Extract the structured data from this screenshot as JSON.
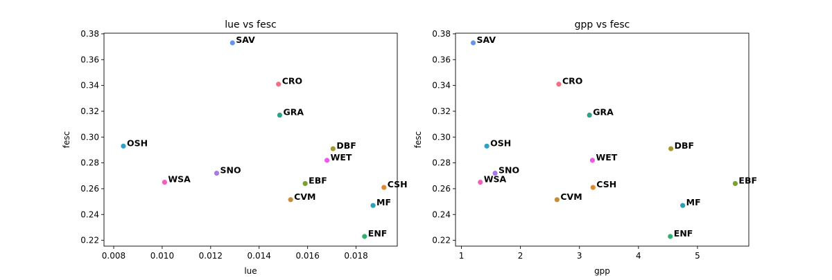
{
  "chart_data": [
    {
      "type": "scatter",
      "title": "lue vs fesc",
      "xlabel": "lue",
      "ylabel": "fesc",
      "xlim": [
        0.0076,
        0.0197
      ],
      "ylim": [
        0.2155,
        0.3805
      ],
      "xticks": [
        0.008,
        0.01,
        0.012,
        0.014,
        0.016,
        0.018
      ],
      "xtick_labels": [
        "0.008",
        "0.010",
        "0.012",
        "0.014",
        "0.016",
        "0.018"
      ],
      "yticks": [
        0.22,
        0.24,
        0.26,
        0.28,
        0.3,
        0.32,
        0.34,
        0.36,
        0.38
      ],
      "ytick_labels": [
        "0.22",
        "0.24",
        "0.26",
        "0.28",
        "0.30",
        "0.32",
        "0.34",
        "0.36",
        "0.38"
      ],
      "grid": false,
      "points": [
        {
          "label": "SAV",
          "x": 0.0129,
          "y": 0.373,
          "color": "#6495ed"
        },
        {
          "label": "CRO",
          "x": 0.0148,
          "y": 0.341,
          "color": "#f0707f"
        },
        {
          "label": "GRA",
          "x": 0.01485,
          "y": 0.317,
          "color": "#2aa58a"
        },
        {
          "label": "OSH",
          "x": 0.0084,
          "y": 0.293,
          "color": "#2ba3c6"
        },
        {
          "label": "DBF",
          "x": 0.01705,
          "y": 0.291,
          "color": "#a39a2f"
        },
        {
          "label": "WET",
          "x": 0.0168,
          "y": 0.282,
          "color": "#ee5ae8"
        },
        {
          "label": "SNO",
          "x": 0.01225,
          "y": 0.272,
          "color": "#a878ec"
        },
        {
          "label": "WSA",
          "x": 0.0101,
          "y": 0.265,
          "color": "#f35fbb"
        },
        {
          "label": "EBF",
          "x": 0.0159,
          "y": 0.264,
          "color": "#79a32e"
        },
        {
          "label": "CSH",
          "x": 0.01915,
          "y": 0.261,
          "color": "#de8a2f"
        },
        {
          "label": "CVM",
          "x": 0.0153,
          "y": 0.2515,
          "color": "#c68c3a"
        },
        {
          "label": "MF",
          "x": 0.0187,
          "y": 0.247,
          "color": "#2aa0b8"
        },
        {
          "label": "ENF",
          "x": 0.01835,
          "y": 0.223,
          "color": "#33b06f"
        }
      ]
    },
    {
      "type": "scatter",
      "title": "gpp vs fesc",
      "xlabel": "gpp",
      "ylabel": "fesc",
      "xlim": [
        0.9,
        5.87
      ],
      "ylim": [
        0.2155,
        0.3805
      ],
      "xticks": [
        1,
        2,
        3,
        4,
        5
      ],
      "xtick_labels": [
        "1",
        "2",
        "3",
        "4",
        "5"
      ],
      "yticks": [
        0.22,
        0.24,
        0.26,
        0.28,
        0.3,
        0.32,
        0.34,
        0.36,
        0.38
      ],
      "ytick_labels": [
        "0.22",
        "0.24",
        "0.26",
        "0.28",
        "0.30",
        "0.32",
        "0.34",
        "0.36",
        "0.38"
      ],
      "grid": false,
      "points": [
        {
          "label": "SAV",
          "x": 1.2,
          "y": 0.373,
          "color": "#6495ed"
        },
        {
          "label": "CRO",
          "x": 2.65,
          "y": 0.341,
          "color": "#f0707f"
        },
        {
          "label": "GRA",
          "x": 3.17,
          "y": 0.317,
          "color": "#2aa58a"
        },
        {
          "label": "OSH",
          "x": 1.43,
          "y": 0.293,
          "color": "#2ba3c6"
        },
        {
          "label": "DBF",
          "x": 4.55,
          "y": 0.291,
          "color": "#a39a2f"
        },
        {
          "label": "WET",
          "x": 3.22,
          "y": 0.282,
          "color": "#ee5ae8"
        },
        {
          "label": "SNO",
          "x": 1.57,
          "y": 0.272,
          "color": "#a878ec"
        },
        {
          "label": "WSA",
          "x": 1.32,
          "y": 0.265,
          "color": "#f35fbb"
        },
        {
          "label": "EBF",
          "x": 5.64,
          "y": 0.264,
          "color": "#79a32e"
        },
        {
          "label": "CSH",
          "x": 3.23,
          "y": 0.261,
          "color": "#de8a2f"
        },
        {
          "label": "CVM",
          "x": 2.62,
          "y": 0.2515,
          "color": "#c68c3a"
        },
        {
          "label": "MF",
          "x": 4.75,
          "y": 0.247,
          "color": "#2aa0b8"
        },
        {
          "label": "ENF",
          "x": 4.54,
          "y": 0.223,
          "color": "#33b06f"
        }
      ]
    }
  ]
}
